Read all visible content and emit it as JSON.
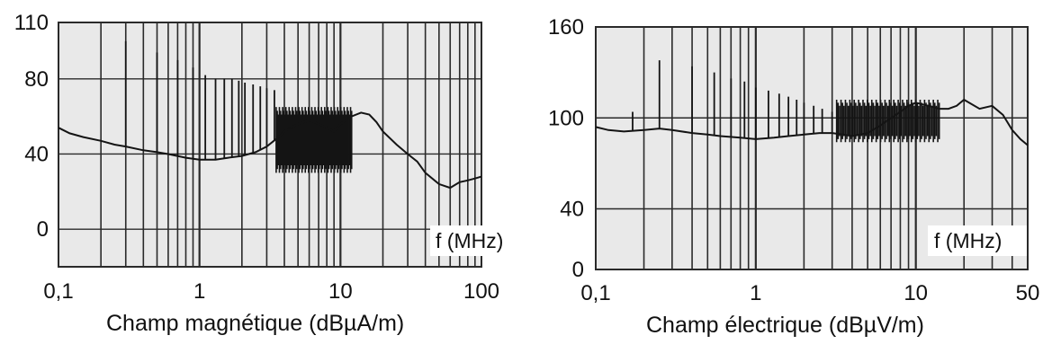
{
  "chart_data": [
    {
      "type": "line",
      "caption": "Champ magnétique (dBµA/m)",
      "xlabel": "f (MHz)",
      "x_scale": "log",
      "xlim": [
        0.1,
        100
      ],
      "ylim": [
        -20,
        110
      ],
      "x_ticks": [
        0.1,
        1,
        10,
        100
      ],
      "x_tick_labels": [
        "0,1",
        "1",
        "10",
        "100"
      ],
      "y_ticks": [
        0,
        40,
        80,
        110
      ],
      "y_tick_labels": [
        "0",
        "40",
        "80",
        "110"
      ],
      "grid": true,
      "series": [
        {
          "x": [
            0.1,
            0.12,
            0.15,
            0.2,
            0.25,
            0.3,
            0.4,
            0.5,
            0.6,
            0.8,
            1.0,
            1.3,
            1.6,
            2.0,
            2.5,
            3.0,
            3.5,
            4.0,
            5.0,
            6.0,
            7.0,
            8.0,
            9.0,
            10.0,
            12.0,
            14.0,
            16.0,
            18.0,
            20.0,
            25.0,
            30.0,
            35.0,
            40.0,
            50.0,
            60.0,
            70.0,
            80.0,
            90.0,
            100.0
          ],
          "y": [
            54,
            51,
            49,
            47,
            45,
            44,
            42,
            41,
            40,
            38,
            37,
            37,
            38,
            39,
            41,
            44,
            48,
            52,
            56,
            58,
            56,
            54,
            52,
            56,
            60,
            62,
            61,
            57,
            52,
            45,
            40,
            36,
            30,
            24,
            22,
            25,
            26,
            27,
            28
          ]
        }
      ],
      "spikes": [
        {
          "x": 0.3,
          "y": 100
        },
        {
          "x": 0.5,
          "y": 94
        },
        {
          "x": 0.7,
          "y": 90
        },
        {
          "x": 0.9,
          "y": 86
        },
        {
          "x": 1.1,
          "y": 82
        },
        {
          "x": 1.3,
          "y": 80
        },
        {
          "x": 1.5,
          "y": 80
        },
        {
          "x": 1.7,
          "y": 80
        },
        {
          "x": 1.9,
          "y": 79
        },
        {
          "x": 2.1,
          "y": 78
        },
        {
          "x": 2.4,
          "y": 77
        },
        {
          "x": 2.7,
          "y": 76
        },
        {
          "x": 3.0,
          "y": 75
        },
        {
          "x": 3.4,
          "y": 74
        }
      ],
      "band": {
        "x_from": 3.5,
        "x_to": 12.0,
        "y_low": 30,
        "y_high": 65
      }
    },
    {
      "type": "line",
      "caption": "Champ électrique (dBµV/m)",
      "xlabel": "f (MHz)",
      "x_scale": "log",
      "xlim": [
        0.1,
        50
      ],
      "ylim": [
        0,
        160
      ],
      "x_ticks": [
        0.1,
        1,
        10,
        50
      ],
      "x_tick_labels": [
        "0,1",
        "1",
        "10",
        "50"
      ],
      "y_ticks": [
        0,
        40,
        100,
        160
      ],
      "y_tick_labels": [
        "0",
        "40",
        "100",
        "160"
      ],
      "grid": true,
      "series": [
        {
          "x": [
            0.1,
            0.12,
            0.15,
            0.2,
            0.25,
            0.3,
            0.4,
            0.5,
            0.6,
            0.8,
            1.0,
            1.3,
            1.6,
            2.0,
            2.5,
            3.0,
            3.5,
            4.0,
            5.0,
            6.0,
            7.0,
            8.0,
            9.0,
            10.0,
            12.0,
            14.0,
            16.0,
            18.0,
            20.0,
            25.0,
            30.0,
            35.0,
            40.0,
            45.0,
            50.0
          ],
          "y": [
            94,
            92,
            91,
            92,
            93,
            92,
            90,
            89,
            88,
            87,
            86,
            87,
            88,
            89,
            90,
            90,
            89,
            88,
            90,
            95,
            100,
            104,
            108,
            110,
            108,
            106,
            106,
            108,
            112,
            106,
            108,
            102,
            92,
            86,
            82
          ]
        }
      ],
      "spikes": [
        {
          "x": 0.17,
          "y": 104
        },
        {
          "x": 0.25,
          "y": 138
        },
        {
          "x": 0.4,
          "y": 134
        },
        {
          "x": 0.55,
          "y": 130
        },
        {
          "x": 0.7,
          "y": 126
        },
        {
          "x": 0.85,
          "y": 124
        },
        {
          "x": 1.0,
          "y": 120
        },
        {
          "x": 1.2,
          "y": 118
        },
        {
          "x": 1.4,
          "y": 116
        },
        {
          "x": 1.6,
          "y": 114
        },
        {
          "x": 1.8,
          "y": 112
        },
        {
          "x": 2.0,
          "y": 110
        },
        {
          "x": 2.3,
          "y": 108
        },
        {
          "x": 2.6,
          "y": 106
        },
        {
          "x": 3.0,
          "y": 104
        }
      ],
      "band": {
        "x_from": 3.2,
        "x_to": 14.0,
        "y_low": 84,
        "y_high": 112
      }
    }
  ],
  "colors": {
    "trace": "#141414",
    "grid": "#2a2a2a",
    "background": "#e9e9e9",
    "text": "#111111"
  }
}
